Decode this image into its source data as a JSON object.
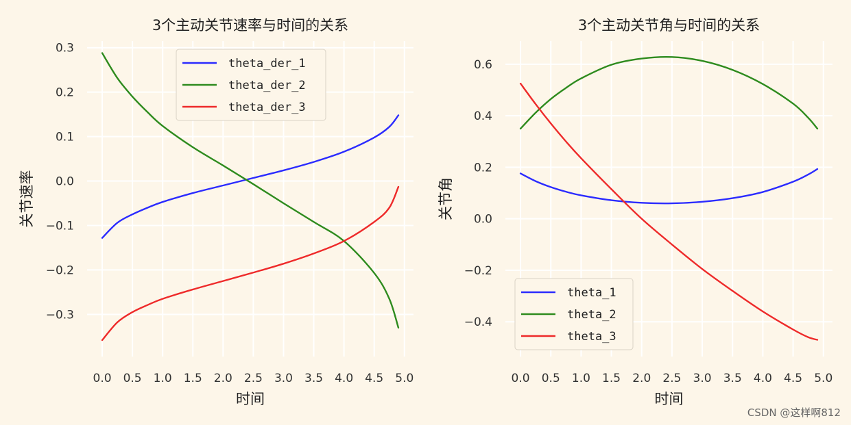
{
  "watermark": "CSDN @这样啊812",
  "colors": {
    "background": "#fdf6e9",
    "grid": "#ffffff",
    "blue": "#2b2bff",
    "green": "#2e8b1e",
    "red": "#ee2a2a"
  },
  "chart_data": [
    {
      "type": "line",
      "title": "3个主动关节速率与时间的关系",
      "xlabel": "时间",
      "ylabel": "关节速率",
      "xlim": [
        -0.25,
        5.15
      ],
      "ylim": [
        -0.395,
        0.315
      ],
      "xticks": [
        0.0,
        0.5,
        1.0,
        1.5,
        2.0,
        2.5,
        3.0,
        3.5,
        4.0,
        4.5,
        5.0
      ],
      "xtick_labels": [
        "0.0",
        "0.5",
        "1.0",
        "1.5",
        "2.0",
        "2.5",
        "3.0",
        "3.5",
        "4.0",
        "4.5",
        "5.0"
      ],
      "yticks": [
        -0.3,
        -0.2,
        -0.1,
        0.0,
        0.1,
        0.2,
        0.3
      ],
      "ytick_labels": [
        "−0.3",
        "−0.2",
        "−0.1",
        "0.0",
        "0.1",
        "0.2",
        "0.3"
      ],
      "grid": true,
      "legend_position": "top-center",
      "x": [
        0.0,
        0.25,
        0.5,
        0.75,
        1.0,
        1.5,
        2.0,
        2.5,
        3.0,
        3.5,
        4.0,
        4.5,
        4.75,
        4.9
      ],
      "series": [
        {
          "name": "theta_der_1",
          "color": "#2b2bff",
          "values": [
            -0.128,
            -0.094,
            -0.075,
            -0.06,
            -0.047,
            -0.027,
            -0.01,
            0.007,
            0.024,
            0.043,
            0.066,
            0.098,
            0.122,
            0.148
          ]
        },
        {
          "name": "theta_der_2",
          "color": "#2e8b1e",
          "values": [
            0.288,
            0.232,
            0.19,
            0.155,
            0.124,
            0.076,
            0.035,
            -0.007,
            -0.05,
            -0.092,
            -0.135,
            -0.207,
            -0.265,
            -0.33
          ]
        },
        {
          "name": "theta_der_3",
          "color": "#ee2a2a",
          "values": [
            -0.358,
            -0.318,
            -0.295,
            -0.279,
            -0.265,
            -0.244,
            -0.225,
            -0.206,
            -0.186,
            -0.163,
            -0.135,
            -0.092,
            -0.06,
            -0.013
          ]
        }
      ]
    },
    {
      "type": "line",
      "title": "3个主动关节角与时间的关系",
      "xlabel": "时间",
      "ylabel": "关节角",
      "xlim": [
        -0.25,
        5.15
      ],
      "ylim": [
        -0.535,
        0.69
      ],
      "xticks": [
        0.0,
        0.5,
        1.0,
        1.5,
        2.0,
        2.5,
        3.0,
        3.5,
        4.0,
        4.5,
        5.0
      ],
      "xtick_labels": [
        "0.0",
        "0.5",
        "1.0",
        "1.5",
        "2.0",
        "2.5",
        "3.0",
        "3.5",
        "4.0",
        "4.5",
        "5.0"
      ],
      "yticks": [
        -0.4,
        -0.2,
        0.0,
        0.2,
        0.4,
        0.6
      ],
      "ytick_labels": [
        "−0.4",
        "−0.2",
        "0.0",
        "0.2",
        "0.4",
        "0.6"
      ],
      "grid": true,
      "legend_position": "bottom-left",
      "x": [
        0.0,
        0.25,
        0.5,
        0.75,
        1.0,
        1.5,
        2.0,
        2.5,
        3.0,
        3.5,
        4.0,
        4.5,
        4.75,
        4.9
      ],
      "series": [
        {
          "name": "theta_1",
          "color": "#2b2bff",
          "values": [
            0.176,
            0.146,
            0.123,
            0.105,
            0.091,
            0.072,
            0.062,
            0.06,
            0.066,
            0.08,
            0.104,
            0.144,
            0.172,
            0.193
          ]
        },
        {
          "name": "theta_2",
          "color": "#2e8b1e",
          "values": [
            0.35,
            0.412,
            0.465,
            0.508,
            0.545,
            0.598,
            0.622,
            0.628,
            0.613,
            0.578,
            0.523,
            0.447,
            0.392,
            0.35
          ]
        },
        {
          "name": "theta_3",
          "color": "#ee2a2a",
          "values": [
            0.525,
            0.445,
            0.37,
            0.3,
            0.235,
            0.115,
            0.0,
            -0.1,
            -0.195,
            -0.28,
            -0.36,
            -0.43,
            -0.46,
            -0.47
          ]
        }
      ]
    }
  ]
}
